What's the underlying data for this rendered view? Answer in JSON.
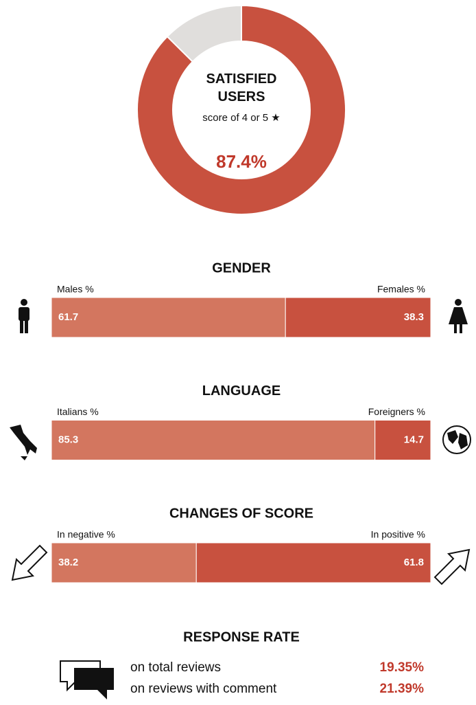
{
  "chart_data": [
    {
      "type": "pie",
      "title": "SATISFIED USERS",
      "subtitle": "score of 4 or 5 ★",
      "categories": [
        null,
        null
      ],
      "values": [
        87.4,
        12.6
      ],
      "value_labels": [
        "87.4%",
        null
      ],
      "colors": [
        "#c8513f",
        "#e0dedc"
      ]
    },
    {
      "type": "stacked_bar",
      "title": "GENDER",
      "xlim": [
        0,
        100
      ],
      "series": [
        {
          "name": "Males %",
          "color": "#d3765f",
          "values": [
            61.7
          ]
        },
        {
          "name": "Females %",
          "color": "#c8513f",
          "values": [
            38.3
          ]
        }
      ]
    },
    {
      "type": "stacked_bar",
      "title": "LANGUAGE",
      "xlim": [
        0,
        100
      ],
      "series": [
        {
          "name": "Italians %",
          "color": "#d3765f",
          "values": [
            85.3
          ]
        },
        {
          "name": "Foreigners %",
          "color": "#c8513f",
          "values": [
            14.7
          ]
        }
      ]
    },
    {
      "type": "stacked_bar",
      "title": "CHANGES OF SCORE",
      "xlim": [
        0,
        100
      ],
      "series": [
        {
          "name": "In negative %",
          "color": "#d3765f",
          "values": [
            38.2
          ]
        },
        {
          "name": "In positive %",
          "color": "#c8513f",
          "values": [
            61.8
          ]
        }
      ]
    }
  ],
  "response_rate": {
    "title": "RESPONSE RATE",
    "rows": [
      {
        "label": "on total reviews",
        "value": "19.35%"
      },
      {
        "label": "on reviews with comment",
        "value": "21.39%"
      }
    ]
  }
}
